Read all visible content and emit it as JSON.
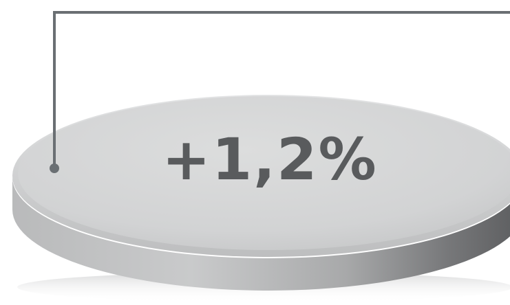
{
  "metric": {
    "value": "+1,2%"
  },
  "colors": {
    "text": "#595b5d",
    "connector": "#6a6f73",
    "disc_top": "#d7d8d9",
    "disc_side_light": "#c4c5c6",
    "disc_side_dark": "#5f6062"
  }
}
